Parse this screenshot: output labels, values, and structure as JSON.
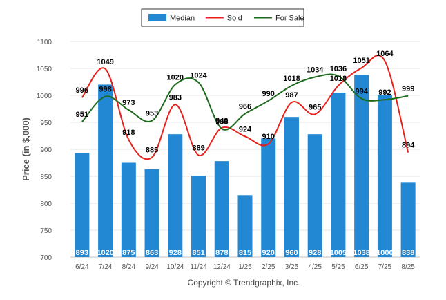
{
  "chart_data": {
    "type": "bar",
    "title": "",
    "ylabel": "Price (in $,000)",
    "xlabel": "",
    "ylim": [
      700,
      1100
    ],
    "yticks": [
      700,
      750,
      800,
      850,
      900,
      950,
      1000,
      1050,
      1100
    ],
    "grid": true,
    "legend_position": "top-center",
    "categories": [
      "6/24",
      "7/24",
      "8/24",
      "9/24",
      "10/24",
      "11/24",
      "12/24",
      "1/25",
      "2/25",
      "3/25",
      "4/25",
      "5/25",
      "6/25",
      "7/25",
      "8/25"
    ],
    "series": [
      {
        "name": "Median",
        "kind": "bar",
        "color": "#2288d4",
        "values": [
          893,
          1020,
          875,
          863,
          928,
          851,
          878,
          815,
          920,
          960,
          928,
          1005,
          1038,
          1000,
          838
        ]
      },
      {
        "name": "Sold",
        "kind": "line",
        "color": "#e8201c",
        "values": [
          996,
          1049,
          918,
          885,
          983,
          889,
          940,
          924,
          910,
          987,
          965,
          1018,
          1051,
          1064,
          894
        ]
      },
      {
        "name": "For Sale",
        "kind": "line",
        "color": "#1e6b1e",
        "values": [
          951,
          998,
          973,
          953,
          1020,
          1024,
          938,
          966,
          990,
          1018,
          1034,
          1036,
          994,
          992,
          999
        ]
      }
    ],
    "credit": "Copyright © Trendgraphix, Inc."
  }
}
